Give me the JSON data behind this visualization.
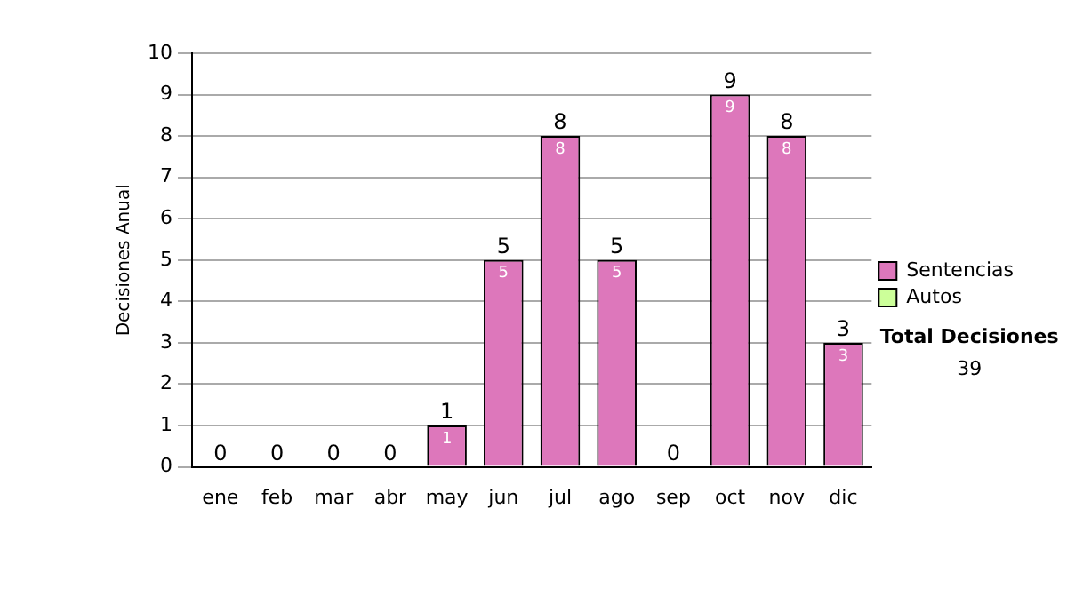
{
  "chart_data": {
    "type": "bar",
    "stacked": true,
    "ylabel": "Decisiones Anual",
    "categories": [
      "ene",
      "feb",
      "mar",
      "abr",
      "may",
      "jun",
      "jul",
      "ago",
      "sep",
      "oct",
      "nov",
      "dic"
    ],
    "series": [
      {
        "name": "Sentencias",
        "color": "#dd77bb",
        "values": [
          0,
          0,
          0,
          0,
          1,
          5,
          8,
          5,
          0,
          9,
          8,
          3
        ],
        "value_labels": [
          null,
          null,
          null,
          null,
          "1",
          "5",
          "8",
          "5",
          null,
          "9",
          "8",
          "3"
        ]
      },
      {
        "name": "Autos",
        "color": "#ccff99",
        "values": [
          0,
          0,
          0,
          0,
          0,
          0,
          0,
          0,
          0,
          0,
          0,
          0
        ]
      }
    ],
    "totals": [
      "0",
      "0",
      "0",
      "0",
      "1",
      "5",
      "8",
      "5",
      "0",
      "9",
      "8",
      "3"
    ],
    "ylim": [
      0,
      10
    ],
    "yticks": [
      0,
      1,
      2,
      3,
      4,
      5,
      6,
      7,
      8,
      9,
      10
    ],
    "grid": "y",
    "legend": "right",
    "annotations": [
      "Total Decisiones",
      "39"
    ]
  }
}
